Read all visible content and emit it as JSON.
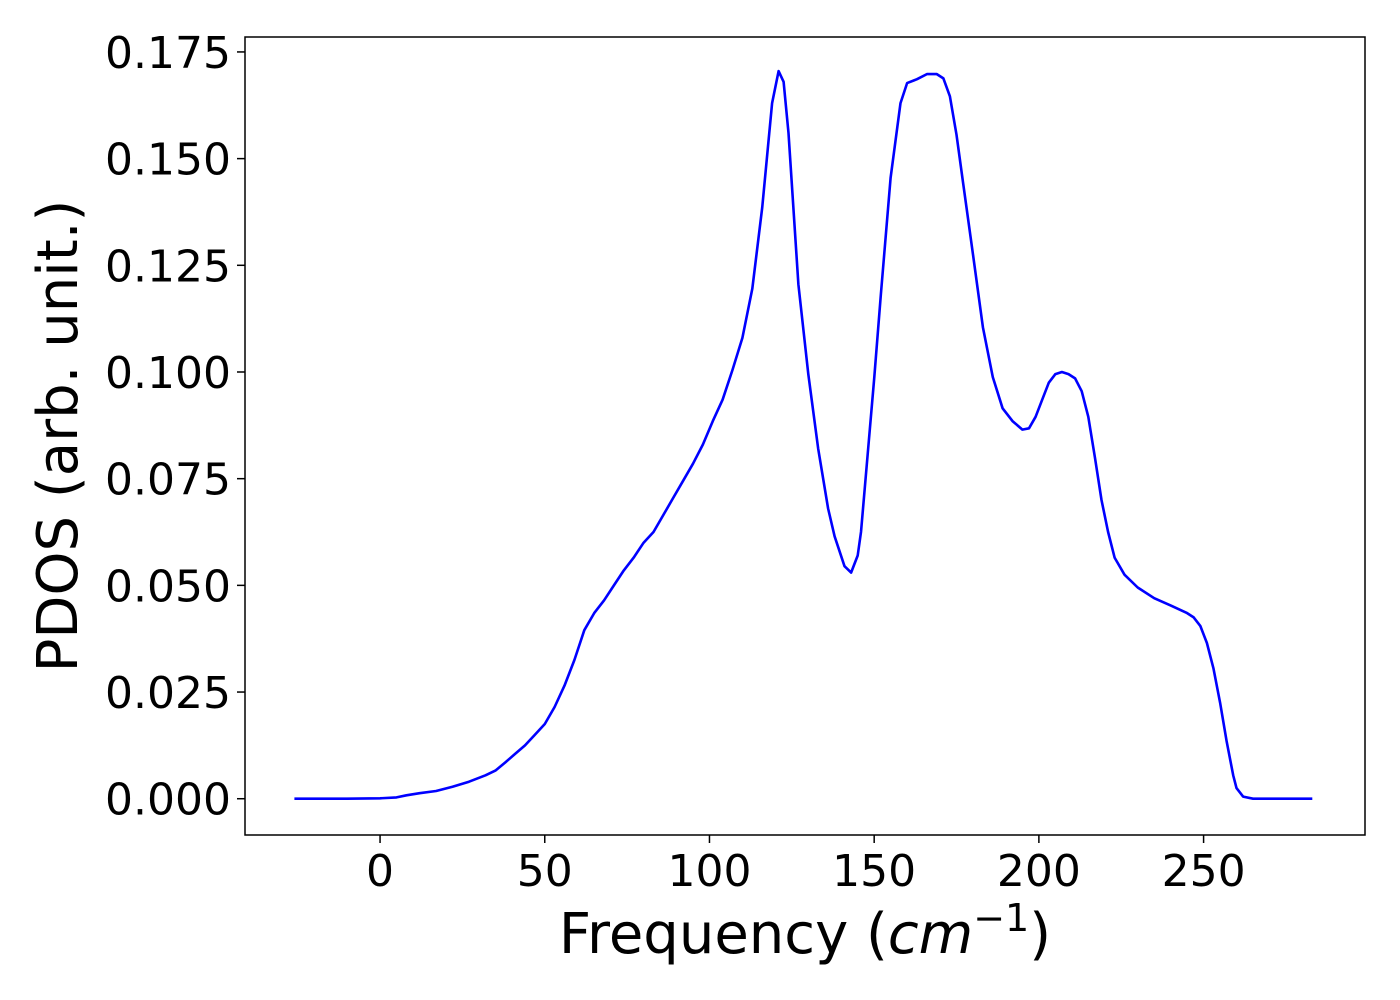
{
  "chart_data": {
    "type": "line",
    "title": "",
    "xlabel": {
      "prefix": "Frequency (",
      "unit": "cm",
      "exponent": "−1",
      "suffix": ")"
    },
    "ylabel": "PDOS (arb. unit.)",
    "xlim": [
      -41,
      299
    ],
    "ylim": [
      -0.0085,
      0.1785
    ],
    "xticks": [
      0,
      50,
      100,
      150,
      200,
      250
    ],
    "xtick_labels": [
      "0",
      "50",
      "100",
      "150",
      "200",
      "250"
    ],
    "yticks": [
      0.0,
      0.025,
      0.05,
      0.075,
      0.1,
      0.125,
      0.15,
      0.175
    ],
    "ytick_labels": [
      "0.000",
      "0.025",
      "0.050",
      "0.075",
      "0.100",
      "0.125",
      "0.150",
      "0.175"
    ],
    "grid": false,
    "legend": false,
    "series": [
      {
        "color": "#0000ff",
        "x": [
          -26,
          -10,
          0,
          5,
          8,
          12,
          17,
          22,
          27,
          32,
          35,
          38,
          41,
          44,
          47,
          50,
          53,
          56,
          59,
          62,
          65,
          68,
          71,
          74,
          77,
          80,
          83,
          86,
          89,
          92,
          95,
          98,
          101,
          104,
          107,
          110,
          113,
          116,
          119,
          121,
          122.5,
          124,
          127,
          130,
          133,
          136,
          138,
          141,
          143,
          145,
          146,
          148,
          150,
          152,
          155,
          158,
          160,
          162,
          163,
          166,
          169,
          171,
          173,
          175,
          177,
          180,
          183,
          186,
          189,
          192,
          195,
          197,
          199,
          201,
          203,
          205,
          207,
          209,
          211,
          213,
          215,
          217,
          219,
          221,
          223,
          226,
          230,
          235,
          240,
          245,
          247,
          249,
          251,
          253,
          255,
          257,
          259,
          260,
          262,
          265,
          270,
          283
        ],
        "y": [
          0,
          0,
          0.0001,
          0.0003,
          0.0008,
          0.0013,
          0.0018,
          0.0028,
          0.004,
          0.0055,
          0.0066,
          0.0085,
          0.0105,
          0.0125,
          0.015,
          0.0175,
          0.0215,
          0.0265,
          0.0325,
          0.0395,
          0.0435,
          0.0465,
          0.05,
          0.0535,
          0.0565,
          0.06,
          0.0625,
          0.0665,
          0.0705,
          0.0745,
          0.0785,
          0.083,
          0.0885,
          0.0935,
          0.1005,
          0.108,
          0.1195,
          0.1385,
          0.163,
          0.1705,
          0.168,
          0.156,
          0.1205,
          0.0995,
          0.082,
          0.068,
          0.0615,
          0.0545,
          0.053,
          0.057,
          0.0625,
          0.0805,
          0.0985,
          0.118,
          0.1455,
          0.163,
          0.1677,
          0.1683,
          0.1686,
          0.1698,
          0.1698,
          0.1688,
          0.1646,
          0.1556,
          0.1443,
          0.1275,
          0.1105,
          0.0988,
          0.0915,
          0.0885,
          0.0865,
          0.0868,
          0.0895,
          0.0935,
          0.0975,
          0.0995,
          0.1,
          0.0995,
          0.0985,
          0.0955,
          0.0895,
          0.08,
          0.07,
          0.0625,
          0.0565,
          0.0525,
          0.0495,
          0.047,
          0.0453,
          0.0435,
          0.0425,
          0.0405,
          0.0365,
          0.0305,
          0.0225,
          0.0135,
          0.0055,
          0.0025,
          0.0005,
          0,
          0,
          0
        ]
      }
    ]
  }
}
